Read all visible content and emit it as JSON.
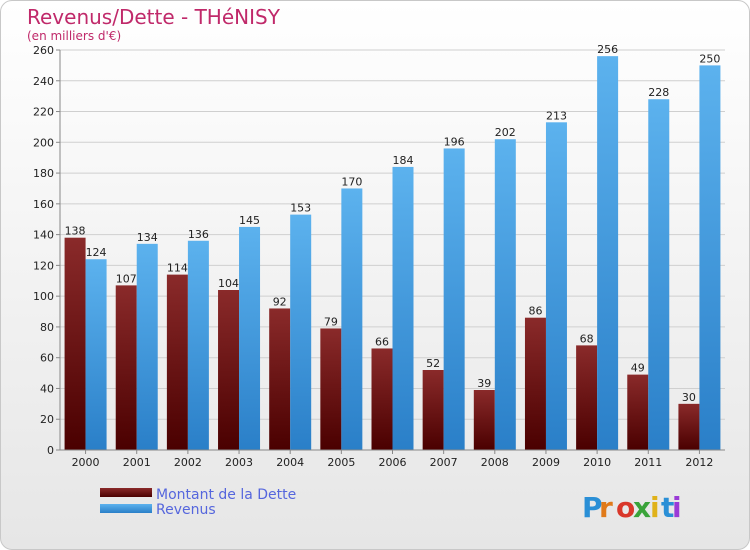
{
  "chart_data": {
    "type": "bar",
    "title": "Revenus/Dette - THéNISY",
    "subtitle": "(en milliers d'€)",
    "categories": [
      "2000",
      "2001",
      "2002",
      "2003",
      "2004",
      "2005",
      "2006",
      "2007",
      "2008",
      "2009",
      "2010",
      "2011",
      "2012"
    ],
    "series": [
      {
        "name": "Montant de la Dette",
        "color": "#7a1a1a",
        "values": [
          138,
          107,
          114,
          104,
          92,
          79,
          66,
          52,
          39,
          86,
          68,
          49,
          30
        ]
      },
      {
        "name": "Revenus",
        "color": "#3d9be0",
        "values": [
          124,
          134,
          136,
          145,
          153,
          170,
          184,
          196,
          202,
          213,
          256,
          228,
          250
        ]
      }
    ],
    "ylim": [
      0,
      260
    ],
    "yticks": [
      0,
      20,
      40,
      60,
      80,
      100,
      120,
      140,
      160,
      180,
      200,
      220,
      240,
      260
    ],
    "grid": true,
    "legend_position": "bottom-left"
  },
  "logo": {
    "letters": [
      "P",
      "r",
      "o",
      "x",
      "i",
      "t",
      "i"
    ],
    "colors": [
      "#2a8fd6",
      "#e07a1a",
      "#d9372a",
      "#3aa33a",
      "#e0b21a",
      "#2a8fd6",
      "#9a3ad6"
    ]
  }
}
